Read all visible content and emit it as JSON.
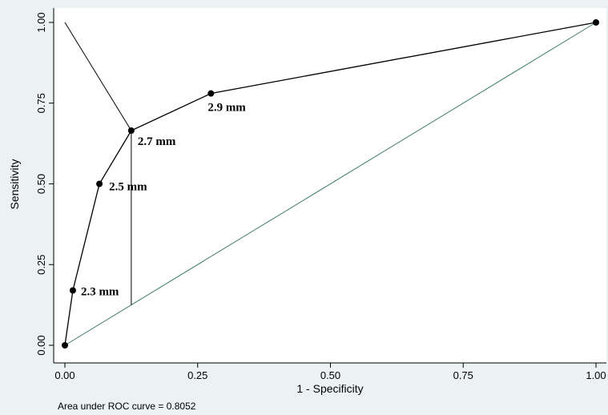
{
  "chart_data": {
    "type": "line",
    "xlabel": "1 - Specificity",
    "ylabel": "Sensitivity",
    "xlim": [
      0,
      1
    ],
    "ylim": [
      0,
      1
    ],
    "x_ticks": [
      "0.00",
      "0.25",
      "0.50",
      "0.75",
      "1.00"
    ],
    "y_ticks": [
      "0.00",
      "0.25",
      "0.50",
      "0.75",
      "1.00"
    ],
    "grid": false,
    "series": [
      {
        "x": [
          0.0,
          0.015,
          0.065,
          0.125,
          0.275,
          1.0
        ],
        "y": [
          0.0,
          0.17,
          0.5,
          0.665,
          0.78,
          1.0
        ],
        "point_labels": [
          "",
          "2.3 mm",
          "2.5 mm",
          "2.7 mm",
          "2.9 mm",
          ""
        ]
      }
    ],
    "reference_line": {
      "x": [
        0,
        1
      ],
      "y": [
        0,
        1
      ]
    },
    "optimal_cut_line": {
      "x": [
        0,
        0.125
      ],
      "y": [
        1,
        0.665
      ]
    },
    "youden_segment": {
      "x": [
        0.125,
        0.125
      ],
      "y": [
        0.125,
        0.665
      ]
    },
    "note": "Area under ROC curve = 0.8052",
    "colors": {
      "background": "#eaf2f3",
      "plot_area": "#ffffff",
      "curve": "#000000",
      "reference": "#3f7a6e"
    }
  }
}
